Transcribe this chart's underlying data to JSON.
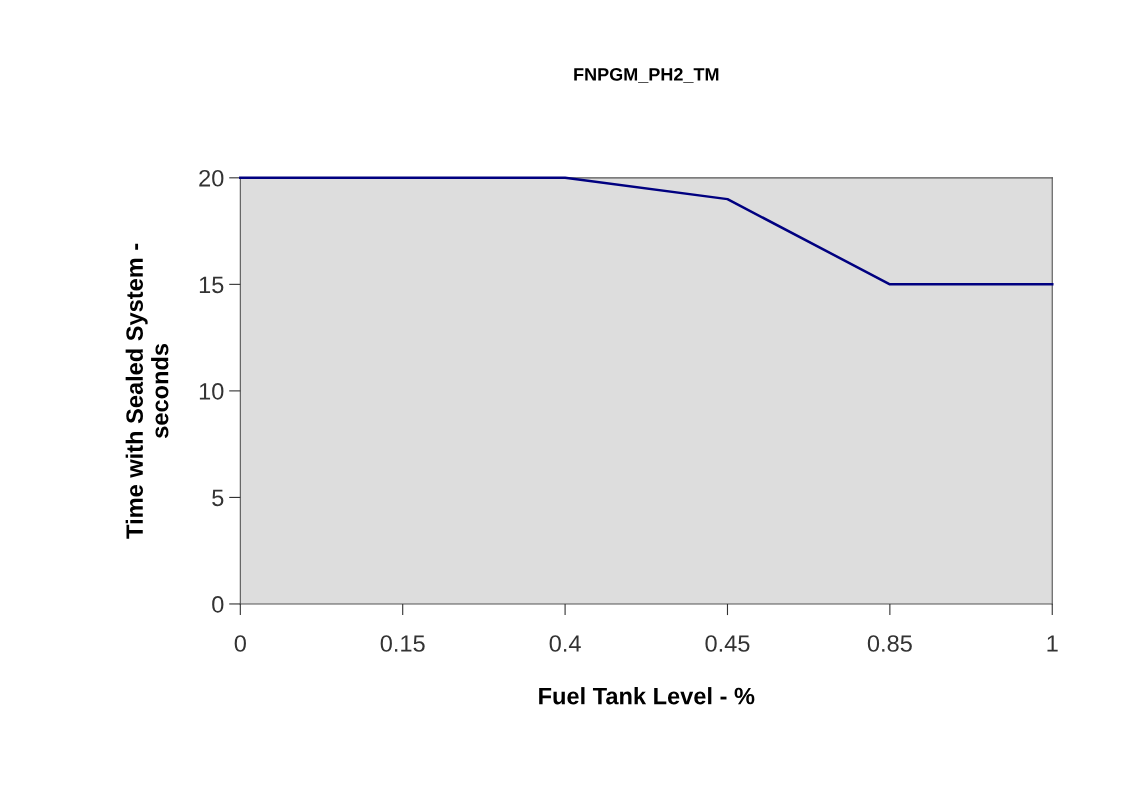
{
  "chart_data": {
    "type": "line",
    "title": "FNPGM_PH2_TM",
    "xlabel": "Fuel Tank Level - %",
    "ylabel": "Time with Sealed System -\nseconds",
    "categories": [
      "0",
      "0.15",
      "0.4",
      "0.45",
      "0.85",
      "1"
    ],
    "values": [
      20,
      20,
      20,
      19,
      15,
      15
    ],
    "color": "#000080",
    "ylim": [
      0,
      20
    ],
    "yticks": [
      0,
      5,
      10,
      15,
      20
    ]
  }
}
